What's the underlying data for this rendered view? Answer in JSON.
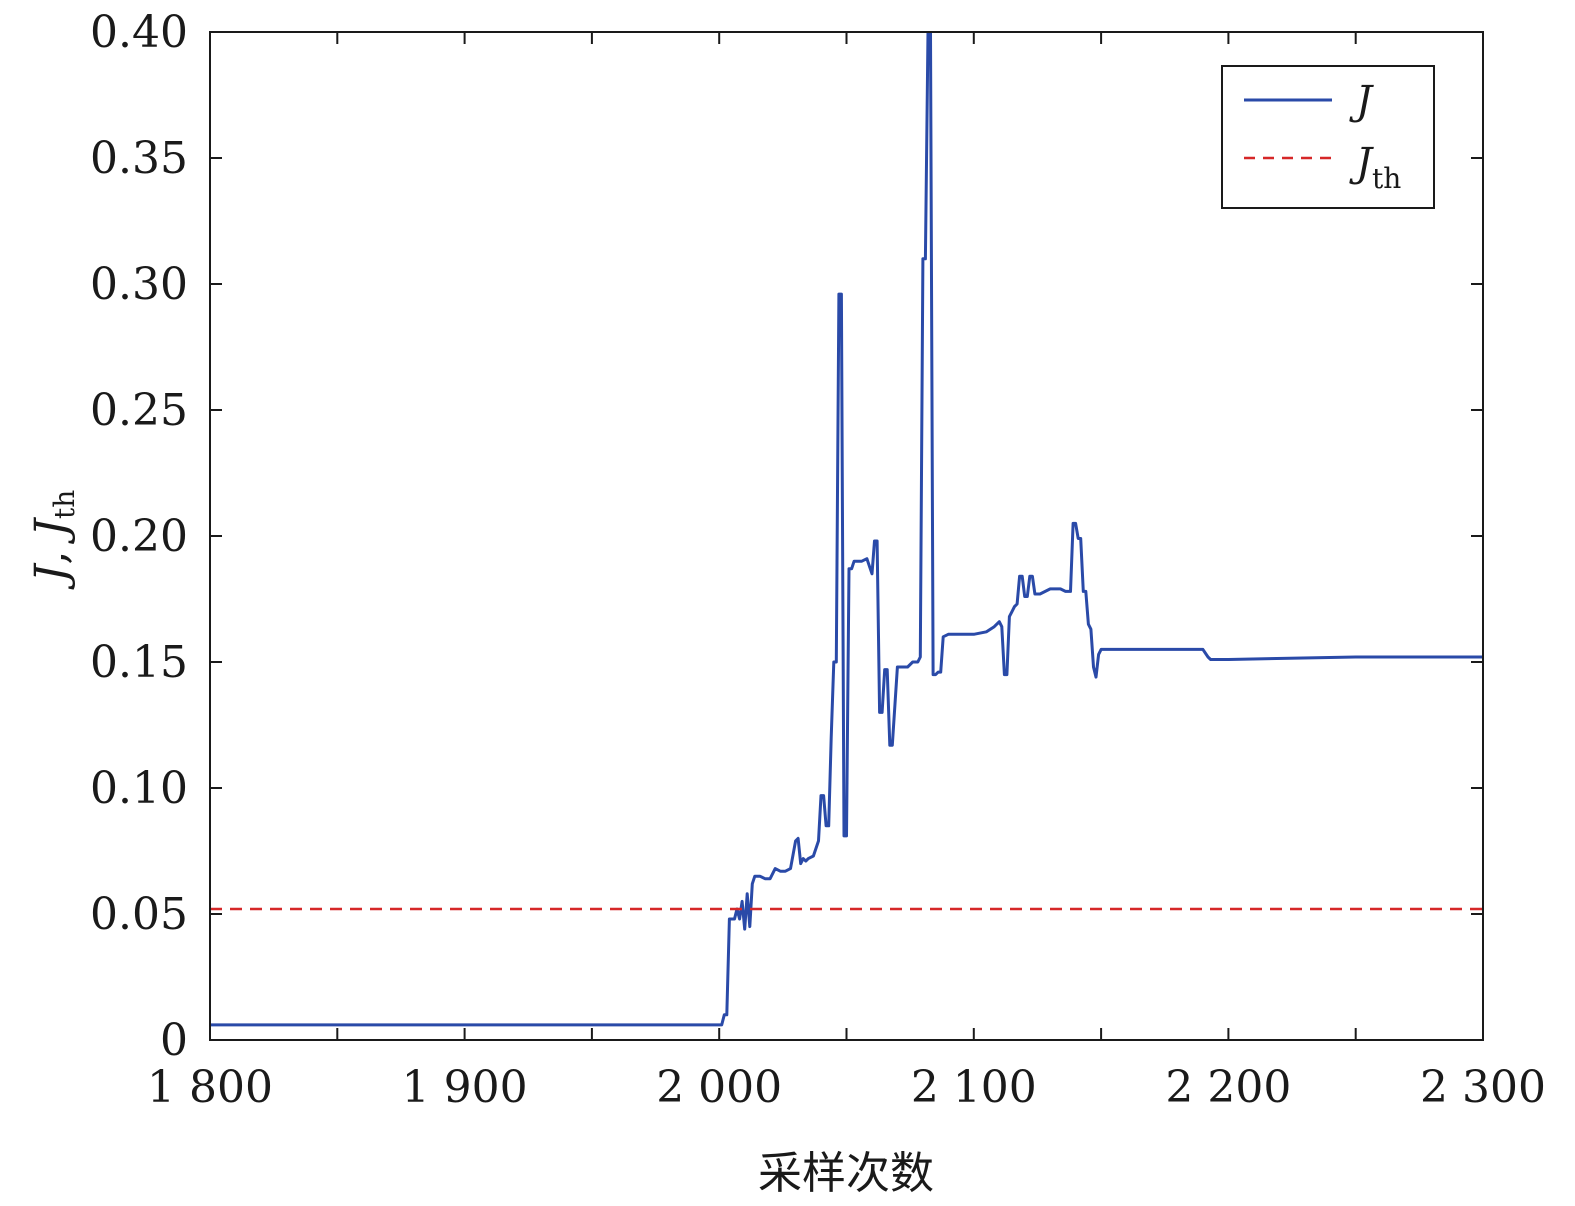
{
  "chart_data": {
    "type": "line",
    "xlabel": "采样次数",
    "ylabel": "J, J_th",
    "ylabel_parts": {
      "a": "J",
      "sep": ", ",
      "b": "J",
      "b_sub": "th"
    },
    "xlim": [
      1800,
      2300
    ],
    "ylim": [
      0,
      0.4
    ],
    "x_ticks": [
      1800,
      1850,
      1900,
      1950,
      2000,
      2050,
      2100,
      2150,
      2200,
      2250,
      2300
    ],
    "x_tick_labels": [
      {
        "value": 1800,
        "label": "1 800"
      },
      {
        "value": 1900,
        "label": "1 900"
      },
      {
        "value": 2000,
        "label": "2 000"
      },
      {
        "value": 2100,
        "label": "2 100"
      },
      {
        "value": 2200,
        "label": "2 200"
      },
      {
        "value": 2300,
        "label": "2 300"
      }
    ],
    "y_ticks": [
      {
        "value": 0,
        "label": "0"
      },
      {
        "value": 0.05,
        "label": "0.05"
      },
      {
        "value": 0.1,
        "label": "0.10"
      },
      {
        "value": 0.15,
        "label": "0.15"
      },
      {
        "value": 0.2,
        "label": "0.20"
      },
      {
        "value": 0.25,
        "label": "0.25"
      },
      {
        "value": 0.3,
        "label": "0.30"
      },
      {
        "value": 0.35,
        "label": "0.35"
      },
      {
        "value": 0.4,
        "label": "0.40"
      }
    ],
    "grid": false,
    "legend_position": "top-right",
    "series": [
      {
        "name": "J",
        "color": "#2a4aa8",
        "style": "solid",
        "x": [
          1800,
          2001,
          2002,
          2003,
          2004,
          2005,
          2006,
          2007,
          2008,
          2009,
          2010,
          2011,
          2012,
          2013,
          2014,
          2016,
          2018,
          2020,
          2022,
          2024,
          2026,
          2028,
          2030,
          2031,
          2032,
          2033,
          2034,
          2035,
          2037,
          2039,
          2040,
          2041,
          2042,
          2043,
          2044,
          2045,
          2046,
          2047,
          2048,
          2049,
          2050,
          2051,
          2052,
          2053,
          2054,
          2055,
          2056,
          2058,
          2059,
          2060,
          2061,
          2062,
          2063,
          2064,
          2065,
          2066,
          2067,
          2068,
          2070,
          2072,
          2074,
          2076,
          2078,
          2079,
          2080,
          2081,
          2082,
          2083,
          2084,
          2085,
          2086,
          2087,
          2088,
          2090,
          2095,
          2100,
          2105,
          2108,
          2110,
          2111,
          2112,
          2113,
          2114,
          2115,
          2116,
          2117,
          2118,
          2119,
          2120,
          2121,
          2122,
          2123,
          2124,
          2126,
          2130,
          2134,
          2136,
          2137,
          2138,
          2139,
          2140,
          2141,
          2142,
          2143,
          2144,
          2145,
          2146,
          2147,
          2148,
          2149,
          2150,
          2160,
          2170,
          2180,
          2190,
          2192,
          2193,
          2200,
          2250,
          2300
        ],
        "y": [
          0.006,
          0.006,
          0.01,
          0.01,
          0.048,
          0.048,
          0.048,
          0.052,
          0.048,
          0.055,
          0.044,
          0.058,
          0.045,
          0.062,
          0.065,
          0.065,
          0.064,
          0.064,
          0.068,
          0.067,
          0.067,
          0.068,
          0.079,
          0.08,
          0.07,
          0.072,
          0.071,
          0.072,
          0.073,
          0.079,
          0.097,
          0.097,
          0.085,
          0.085,
          0.12,
          0.15,
          0.15,
          0.296,
          0.296,
          0.081,
          0.081,
          0.187,
          0.187,
          0.19,
          0.19,
          0.19,
          0.19,
          0.191,
          0.188,
          0.185,
          0.198,
          0.198,
          0.13,
          0.13,
          0.147,
          0.147,
          0.117,
          0.117,
          0.148,
          0.148,
          0.148,
          0.15,
          0.15,
          0.152,
          0.31,
          0.31,
          0.4,
          0.4,
          0.145,
          0.145,
          0.146,
          0.146,
          0.16,
          0.161,
          0.161,
          0.161,
          0.162,
          0.164,
          0.166,
          0.164,
          0.145,
          0.145,
          0.168,
          0.17,
          0.172,
          0.173,
          0.184,
          0.184,
          0.176,
          0.176,
          0.184,
          0.184,
          0.177,
          0.177,
          0.179,
          0.179,
          0.178,
          0.178,
          0.178,
          0.205,
          0.205,
          0.199,
          0.199,
          0.178,
          0.178,
          0.165,
          0.163,
          0.148,
          0.144,
          0.153,
          0.155,
          0.155,
          0.155,
          0.155,
          0.155,
          0.152,
          0.151,
          0.151,
          0.152,
          0.152
        ]
      },
      {
        "name": "J_th",
        "name_parts": {
          "base": "J",
          "sub": "th"
        },
        "color": "#d62728",
        "style": "dashed",
        "x": [
          1800,
          2300
        ],
        "y": [
          0.052,
          0.052
        ]
      }
    ]
  }
}
